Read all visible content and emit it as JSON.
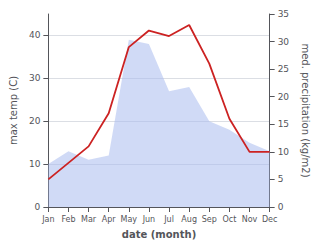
{
  "chart_data": {
    "type": "line",
    "xlabel": "date (month)",
    "ylabel": "max temp (C)",
    "y2label": "med. precipitation (kg/m2)",
    "categories": [
      "Jan",
      "Feb",
      "Mar",
      "Apr",
      "May",
      "Jun",
      "Jul",
      "Aug",
      "Sep",
      "Oct",
      "Nov",
      "Dec"
    ],
    "series": [
      {
        "type": "area",
        "color": "#aabbee",
        "values": [
          10,
          13,
          11,
          12,
          39,
          38,
          27,
          28,
          20,
          18,
          15,
          13
        ]
      },
      {
        "type": "line",
        "color": "#cc2222",
        "axis": "y2",
        "values": [
          5,
          8,
          11,
          17,
          29,
          32,
          31,
          33,
          26,
          16,
          10,
          10
        ]
      }
    ],
    "ylim": [
      0,
      45
    ],
    "yticks": [
      0,
      10,
      20,
      30,
      40
    ],
    "y2lim": [
      0,
      35
    ],
    "y2ticks": [
      0,
      5,
      10,
      15,
      20,
      25,
      30,
      35
    ],
    "grid": true
  }
}
